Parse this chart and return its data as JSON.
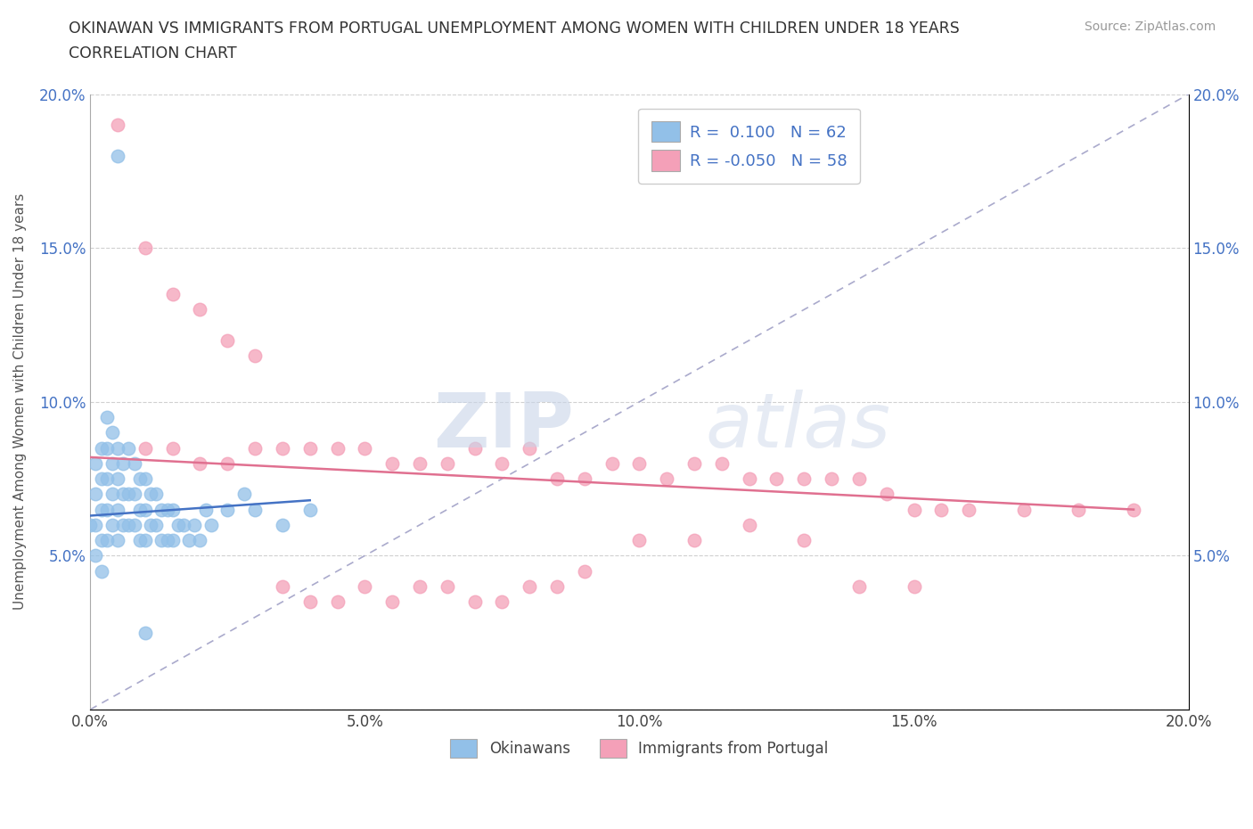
{
  "title_line1": "OKINAWAN VS IMMIGRANTS FROM PORTUGAL UNEMPLOYMENT AMONG WOMEN WITH CHILDREN UNDER 18 YEARS",
  "title_line2": "CORRELATION CHART",
  "source": "Source: ZipAtlas.com",
  "ylabel": "Unemployment Among Women with Children Under 18 years",
  "xlim": [
    0.0,
    0.2
  ],
  "ylim": [
    0.0,
    0.2
  ],
  "xticks": [
    0.0,
    0.05,
    0.1,
    0.15,
    0.2
  ],
  "yticks": [
    0.0,
    0.05,
    0.1,
    0.15,
    0.2
  ],
  "xticklabels": [
    "0.0%",
    "5.0%",
    "10.0%",
    "15.0%",
    "20.0%"
  ],
  "yticklabels_left": [
    "",
    "5.0%",
    "10.0%",
    "15.0%",
    "20.0%"
  ],
  "yticklabels_right": [
    "",
    "5.0%",
    "10.0%",
    "15.0%",
    "20.0%"
  ],
  "okinawan_color": "#92c0e8",
  "portugal_color": "#f4a0b8",
  "okinawan_line_color": "#4472c4",
  "portugal_line_color": "#e07090",
  "okinawan_R": 0.1,
  "okinawan_N": 62,
  "portugal_R": -0.05,
  "portugal_N": 58,
  "legend_labels": [
    "Okinawans",
    "Immigrants from Portugal"
  ],
  "watermark_ZIP": "ZIP",
  "watermark_atlas": "atlas",
  "background_color": "#ffffff",
  "grid_color": "#d0d0d0",
  "okinawan_x": [
    0.005,
    0.0,
    0.001,
    0.001,
    0.001,
    0.001,
    0.002,
    0.002,
    0.002,
    0.002,
    0.002,
    0.003,
    0.003,
    0.003,
    0.003,
    0.003,
    0.004,
    0.004,
    0.004,
    0.004,
    0.005,
    0.005,
    0.005,
    0.005,
    0.006,
    0.006,
    0.006,
    0.007,
    0.007,
    0.007,
    0.008,
    0.008,
    0.008,
    0.009,
    0.009,
    0.009,
    0.01,
    0.01,
    0.01,
    0.011,
    0.011,
    0.012,
    0.012,
    0.013,
    0.013,
    0.014,
    0.014,
    0.015,
    0.015,
    0.016,
    0.017,
    0.018,
    0.019,
    0.02,
    0.021,
    0.022,
    0.025,
    0.028,
    0.03,
    0.035,
    0.04,
    0.01
  ],
  "okinawan_y": [
    0.18,
    0.06,
    0.08,
    0.07,
    0.06,
    0.05,
    0.085,
    0.075,
    0.065,
    0.055,
    0.045,
    0.095,
    0.085,
    0.075,
    0.065,
    0.055,
    0.09,
    0.08,
    0.07,
    0.06,
    0.085,
    0.075,
    0.065,
    0.055,
    0.08,
    0.07,
    0.06,
    0.085,
    0.07,
    0.06,
    0.08,
    0.07,
    0.06,
    0.075,
    0.065,
    0.055,
    0.075,
    0.065,
    0.055,
    0.07,
    0.06,
    0.07,
    0.06,
    0.065,
    0.055,
    0.065,
    0.055,
    0.065,
    0.055,
    0.06,
    0.06,
    0.055,
    0.06,
    0.055,
    0.065,
    0.06,
    0.065,
    0.07,
    0.065,
    0.06,
    0.065,
    0.025
  ],
  "portugal_x": [
    0.01,
    0.015,
    0.02,
    0.025,
    0.03,
    0.035,
    0.04,
    0.045,
    0.05,
    0.055,
    0.06,
    0.065,
    0.07,
    0.075,
    0.08,
    0.085,
    0.09,
    0.095,
    0.1,
    0.105,
    0.11,
    0.115,
    0.12,
    0.125,
    0.13,
    0.135,
    0.14,
    0.145,
    0.15,
    0.155,
    0.16,
    0.17,
    0.18,
    0.19,
    0.005,
    0.01,
    0.015,
    0.02,
    0.025,
    0.03,
    0.035,
    0.04,
    0.045,
    0.05,
    0.055,
    0.06,
    0.065,
    0.07,
    0.075,
    0.08,
    0.085,
    0.09,
    0.1,
    0.11,
    0.12,
    0.13,
    0.14,
    0.15
  ],
  "portugal_y": [
    0.085,
    0.085,
    0.08,
    0.08,
    0.085,
    0.085,
    0.085,
    0.085,
    0.085,
    0.08,
    0.08,
    0.08,
    0.085,
    0.08,
    0.085,
    0.075,
    0.075,
    0.08,
    0.08,
    0.075,
    0.08,
    0.08,
    0.075,
    0.075,
    0.075,
    0.075,
    0.075,
    0.07,
    0.065,
    0.065,
    0.065,
    0.065,
    0.065,
    0.065,
    0.19,
    0.15,
    0.135,
    0.13,
    0.12,
    0.115,
    0.04,
    0.035,
    0.035,
    0.04,
    0.035,
    0.04,
    0.04,
    0.035,
    0.035,
    0.04,
    0.04,
    0.045,
    0.055,
    0.055,
    0.06,
    0.055,
    0.04,
    0.04
  ],
  "ok_trend_x": [
    0.0,
    0.04
  ],
  "ok_trend_y": [
    0.063,
    0.068
  ],
  "pt_trend_x": [
    0.0,
    0.19
  ],
  "pt_trend_y": [
    0.082,
    0.065
  ]
}
